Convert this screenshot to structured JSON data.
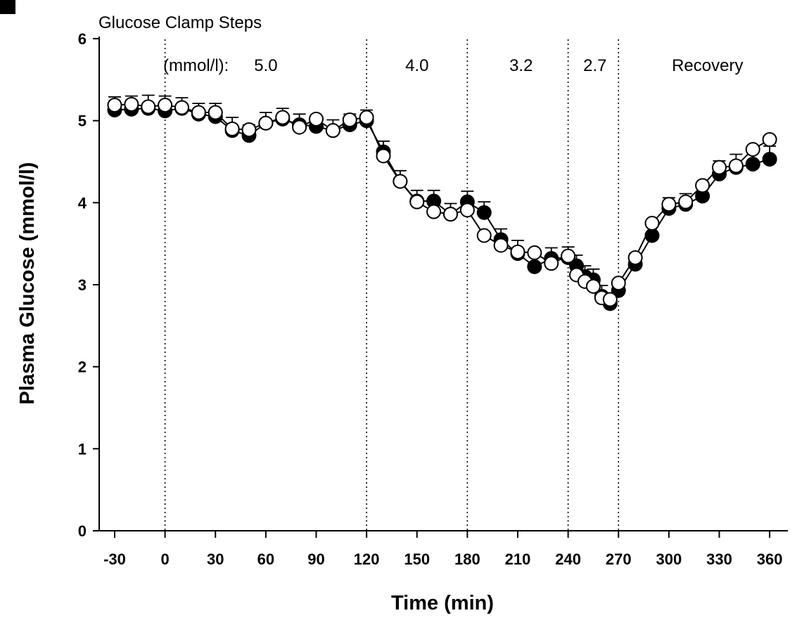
{
  "chart_data": {
    "type": "line",
    "title": "",
    "panel_label": "B",
    "xlabel": "Time (min)",
    "ylabel": "Plasma Glucose (mmol/l)",
    "xlim": [
      -40,
      370
    ],
    "ylim": [
      0,
      6
    ],
    "x_ticks": [
      -30,
      0,
      30,
      60,
      90,
      120,
      150,
      180,
      210,
      240,
      270,
      300,
      330,
      360
    ],
    "x_tick_labels": [
      "-30",
      "0",
      "30",
      "60",
      "90",
      "120",
      "150",
      "180",
      "210",
      "240",
      "270",
      "300",
      "330",
      "360"
    ],
    "y_ticks": [
      0,
      1,
      2,
      3,
      4,
      5,
      6
    ],
    "y_tick_labels": [
      "0",
      "1",
      "2",
      "3",
      "4",
      "5",
      "6"
    ],
    "grid": false,
    "legend": "none",
    "clamp_header": "Glucose Clamp Steps",
    "clamp_unit_label": "(mmol/l):",
    "steps": [
      {
        "label": "5.0",
        "x_center": 60
      },
      {
        "label": "4.0",
        "x_center": 150
      },
      {
        "label": "3.2",
        "x_center": 212
      },
      {
        "label": "2.7",
        "x_center": 256
      },
      {
        "label": "Recovery",
        "x_center": 323
      }
    ],
    "dividers_x": [
      0,
      120,
      180,
      240,
      270
    ],
    "series": [
      {
        "marker": "filled",
        "x": [
          -30,
          -20,
          -10,
          0,
          10,
          20,
          30,
          40,
          50,
          60,
          70,
          80,
          90,
          100,
          110,
          120,
          130,
          140,
          150,
          160,
          170,
          180,
          190,
          200,
          210,
          220,
          230,
          240,
          245,
          250,
          255,
          260,
          265,
          270,
          280,
          290,
          300,
          310,
          320,
          330,
          340,
          350,
          360
        ],
        "y": [
          5.13,
          5.14,
          5.15,
          5.12,
          5.15,
          5.08,
          5.05,
          4.88,
          4.82,
          4.97,
          5.02,
          4.95,
          4.93,
          4.88,
          4.95,
          5.0,
          4.62,
          4.26,
          4.02,
          4.02,
          3.86,
          4.01,
          3.88,
          3.55,
          3.38,
          3.22,
          3.32,
          3.33,
          3.23,
          3.1,
          3.06,
          2.86,
          2.77,
          2.93,
          3.25,
          3.6,
          3.93,
          3.98,
          4.08,
          4.35,
          4.43,
          4.47,
          4.53
        ],
        "err": [
          0.08,
          0.08,
          0.08,
          0.1,
          0.05,
          0.05,
          0.08,
          0.08,
          0.05,
          0.05,
          0.05,
          0.05,
          0.05,
          0.05,
          0.05,
          0.05,
          0.05,
          0.05,
          0.05,
          0.05,
          0.05,
          0.05,
          0.05,
          0.05,
          0.08,
          0.05,
          0.05,
          0.05,
          0.05,
          0.05,
          0.05,
          0.05,
          0.05,
          0.05,
          0.05,
          0.05,
          0.05,
          0.05,
          0.08,
          0.08,
          0.08,
          0.1,
          0.08
        ]
      },
      {
        "marker": "open",
        "x": [
          -30,
          -20,
          -10,
          0,
          10,
          20,
          30,
          40,
          50,
          60,
          70,
          80,
          90,
          100,
          110,
          120,
          130,
          140,
          150,
          160,
          170,
          180,
          190,
          200,
          210,
          220,
          230,
          240,
          245,
          250,
          255,
          260,
          265,
          270,
          280,
          290,
          300,
          310,
          320,
          330,
          340,
          350,
          360
        ],
        "y": [
          5.19,
          5.2,
          5.17,
          5.19,
          5.16,
          5.1,
          5.1,
          4.9,
          4.89,
          4.97,
          5.04,
          4.92,
          5.02,
          4.88,
          5.01,
          5.04,
          4.57,
          4.26,
          4.01,
          3.89,
          3.86,
          3.91,
          3.6,
          3.48,
          3.4,
          3.39,
          3.26,
          3.35,
          3.12,
          3.04,
          2.98,
          2.84,
          2.82,
          3.02,
          3.33,
          3.75,
          3.98,
          4.01,
          4.21,
          4.43,
          4.45,
          4.65,
          4.77
        ]
      }
    ]
  }
}
